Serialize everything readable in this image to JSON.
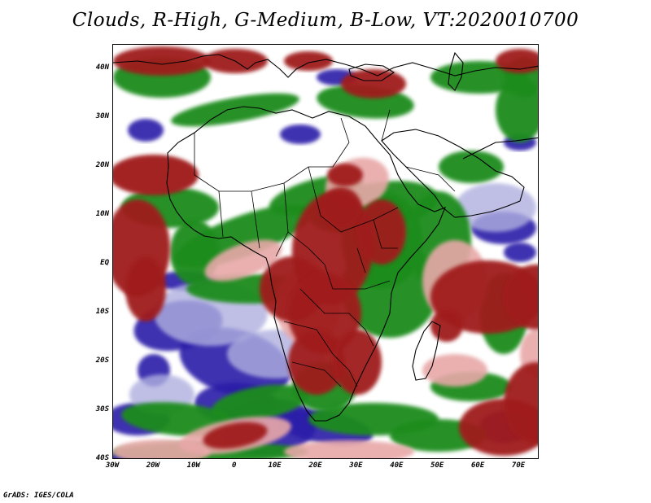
{
  "title": "Clouds, R-High, G-Medium, B-Low, VT:2020010700",
  "credit": "GrADS: IGES/COLA",
  "map": {
    "lon_range": [
      -30,
      75
    ],
    "lat_range": [
      -40,
      45
    ],
    "lat_ticks": [
      "40N",
      "30N",
      "20N",
      "10N",
      "EQ",
      "10S",
      "20S",
      "30S",
      "40S"
    ],
    "lat_values": [
      40,
      30,
      20,
      10,
      0,
      -10,
      -20,
      -30,
      -40
    ],
    "lon_ticks": [
      "30W",
      "20W",
      "10W",
      "0",
      "10E",
      "20E",
      "30E",
      "40E",
      "50E",
      "60E",
      "70E"
    ],
    "lon_values": [
      -30,
      -20,
      -10,
      0,
      10,
      20,
      30,
      40,
      50,
      60,
      70
    ],
    "colors": {
      "high": "#a01c1c",
      "high_light": "#e8a8a8",
      "medium": "#1e8c1e",
      "low": "#2a1aa8",
      "low_light": "#b0b0e0",
      "coast": "#000000"
    }
  }
}
